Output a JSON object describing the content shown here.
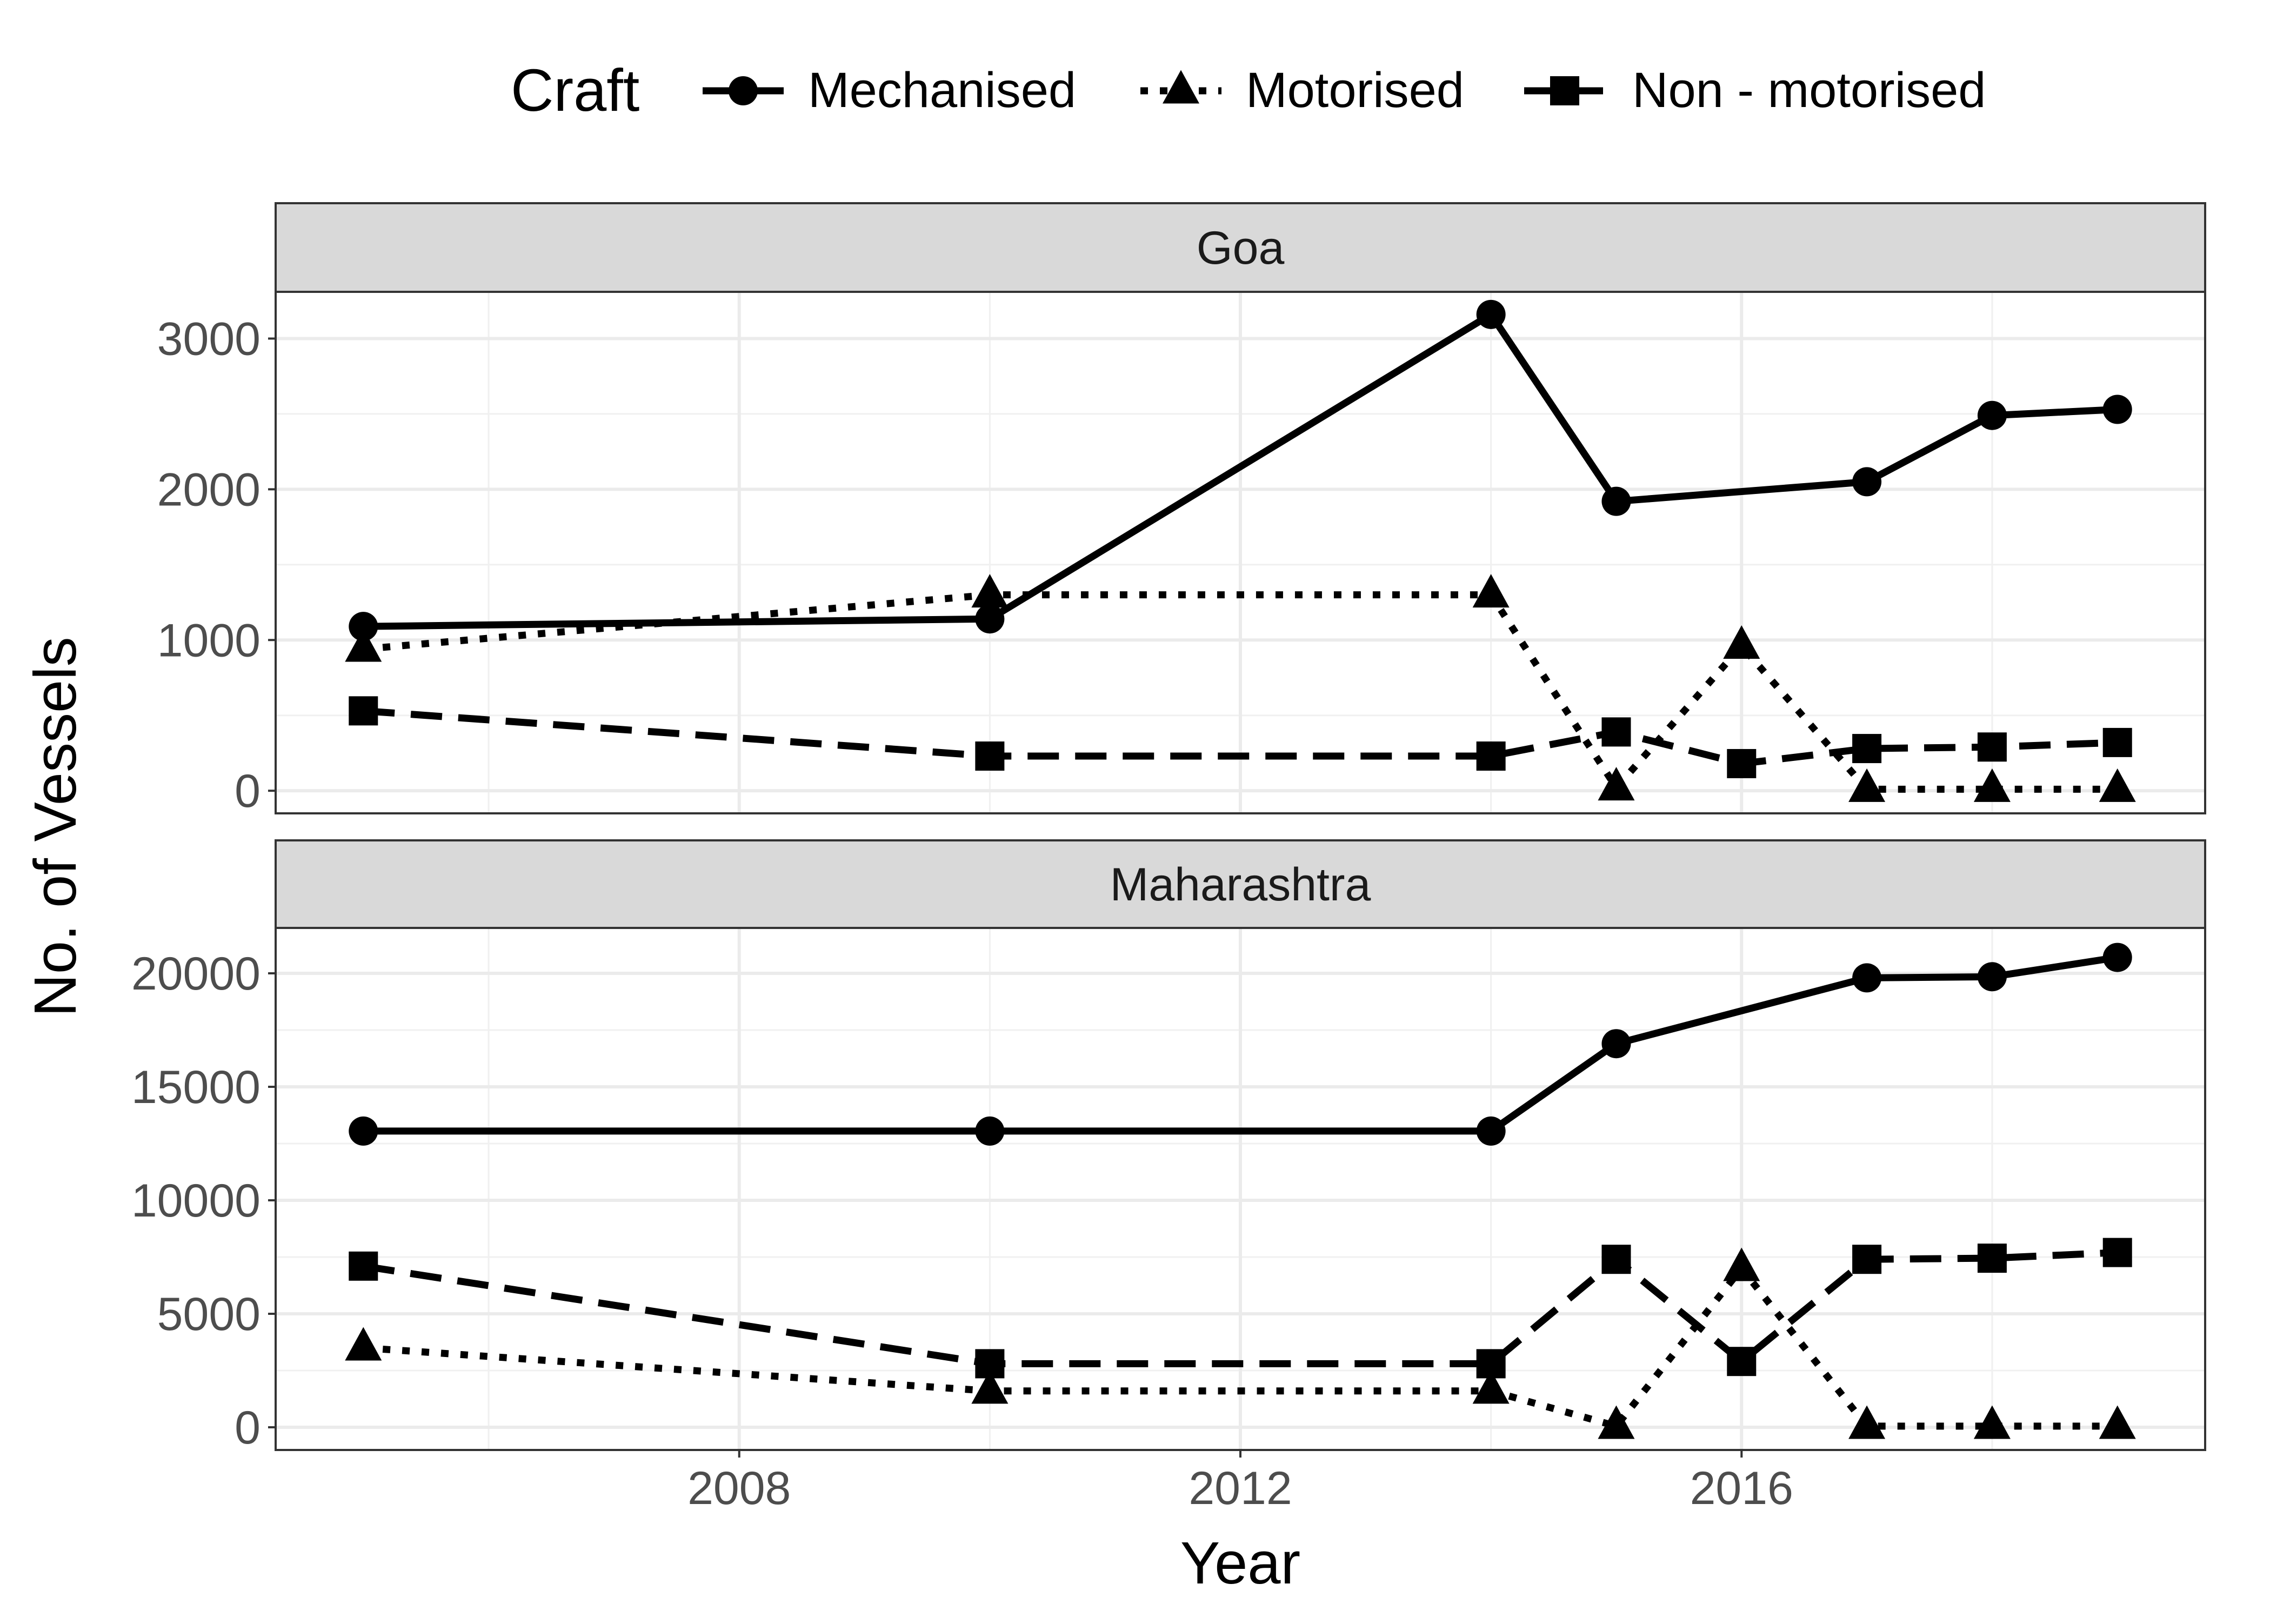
{
  "chart_data": {
    "type": "line",
    "xlabel": "Year",
    "ylabel": "No. of Vessels",
    "xlim": [
      2004.3,
      2019.7
    ],
    "x_ticks": [
      2008,
      2012,
      2016
    ],
    "grid": true,
    "legend": {
      "title": "Craft",
      "placement": "top",
      "entries": [
        {
          "name": "Mechanised",
          "marker": "circle",
          "linetype": "solid"
        },
        {
          "name": "Motorised",
          "marker": "triangle",
          "linetype": "dotted"
        },
        {
          "name": "Non - motorised",
          "marker": "square",
          "linetype": "dashed"
        }
      ]
    },
    "panels": [
      {
        "title": "Goa",
        "ylim": [
          -150,
          3310
        ],
        "y_ticks": [
          0,
          1000,
          2000,
          3000
        ],
        "y_tick_labels": [
          "0",
          "1000",
          "2000",
          "3000"
        ],
        "series": [
          {
            "name": "Mechanised",
            "x": [
              2005,
              2010,
              2014,
              2015,
              2017,
              2018,
              2019
            ],
            "y": [
              1090,
              1140,
              3160,
              1920,
              2050,
              2490,
              2530
            ]
          },
          {
            "name": "Motorised",
            "x": [
              2005,
              2010,
              2014,
              2015,
              2016,
              2017,
              2018,
              2019
            ],
            "y": [
              940,
              1300,
              1300,
              20,
              960,
              10,
              10,
              10
            ]
          },
          {
            "name": "Non - motorised",
            "x": [
              2005,
              2010,
              2014,
              2015,
              2016,
              2017,
              2018,
              2019
            ],
            "y": [
              530,
              230,
              230,
              390,
              180,
              280,
              290,
              320
            ]
          }
        ]
      },
      {
        "title": "Maharashtra",
        "ylim": [
          -1000,
          22000
        ],
        "y_ticks": [
          0,
          5000,
          10000,
          15000,
          20000
        ],
        "y_tick_labels": [
          "0",
          "5000",
          "10000",
          "15000",
          "20000"
        ],
        "series": [
          {
            "name": "Mechanised",
            "x": [
              2005,
              2010,
              2014,
              2015,
              2017,
              2018,
              2019
            ],
            "y": [
              13050,
              13050,
              13050,
              16900,
              19800,
              19850,
              20700
            ]
          },
          {
            "name": "Motorised",
            "x": [
              2005,
              2010,
              2014,
              2015,
              2016,
              2017,
              2018,
              2019
            ],
            "y": [
              3500,
              1600,
              1600,
              50,
              7000,
              50,
              50,
              50
            ]
          },
          {
            "name": "Non - motorised",
            "x": [
              2005,
              2010,
              2014,
              2015,
              2016,
              2017,
              2018,
              2019
            ],
            "y": [
              7100,
              2800,
              2800,
              7400,
              2900,
              7400,
              7450,
              7700
            ]
          }
        ]
      }
    ]
  }
}
